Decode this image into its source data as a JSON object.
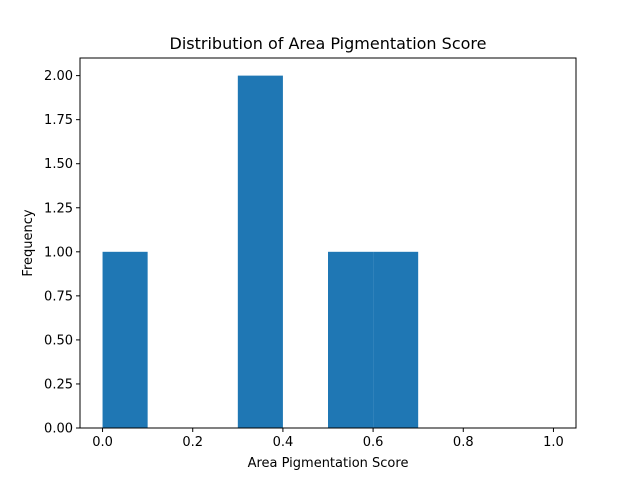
{
  "chart_data": {
    "type": "bar",
    "title": "Distribution of Area Pigmentation Score",
    "xlabel": "Area Pigmentation Score",
    "ylabel": "Frequency",
    "bin_edges": [
      0.0,
      0.1,
      0.2,
      0.3,
      0.4,
      0.5,
      0.6,
      0.7,
      0.8,
      0.9,
      1.0
    ],
    "values": [
      1,
      0,
      0,
      2,
      0,
      1,
      1,
      0,
      0,
      0
    ],
    "xlim": [
      -0.05,
      1.05
    ],
    "ylim": [
      0,
      2.1
    ],
    "xticks": [
      0.0,
      0.2,
      0.4,
      0.6,
      0.8,
      1.0
    ],
    "xtick_labels": [
      "0.0",
      "0.2",
      "0.4",
      "0.6",
      "0.8",
      "1.0"
    ],
    "yticks": [
      0.0,
      0.25,
      0.5,
      0.75,
      1.0,
      1.25,
      1.5,
      1.75,
      2.0
    ],
    "ytick_labels": [
      "0.00",
      "0.25",
      "0.50",
      "0.75",
      "1.00",
      "1.25",
      "1.50",
      "1.75",
      "2.00"
    ],
    "bar_color": "#1f77b4",
    "grid": false,
    "legend": "none"
  }
}
